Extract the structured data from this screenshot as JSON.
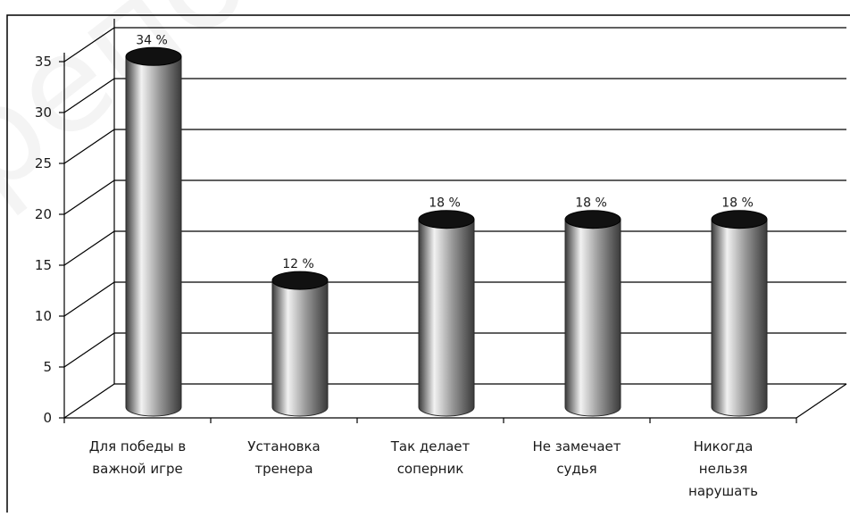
{
  "watermark": "репоз",
  "chart_data": {
    "type": "bar",
    "style": "3d-cylinder",
    "categories": [
      [
        "Для победы в",
        "важной игре"
      ],
      [
        "Установка",
        "тренера"
      ],
      [
        "Так делает",
        "соперник"
      ],
      [
        "Не замечает",
        "судья"
      ],
      [
        "Никогда",
        "нельзя",
        "нарушать"
      ]
    ],
    "values": [
      34,
      12,
      18,
      18,
      18
    ],
    "data_labels": [
      "34 %",
      "12 %",
      "18 %",
      "18 %",
      "18 %"
    ],
    "y_ticks": [
      "0",
      "5",
      "10",
      "15",
      "20",
      "25",
      "30",
      "35"
    ],
    "ylim": [
      0,
      35
    ],
    "grid": true,
    "legend": "none",
    "colors": {
      "bar_body": "#9a9a9a",
      "bar_highlight": "#f2f2f2",
      "bar_shadow": "#3a3a3a",
      "bar_top": "#111111",
      "grid": "#000000",
      "frame": "#000000"
    }
  }
}
